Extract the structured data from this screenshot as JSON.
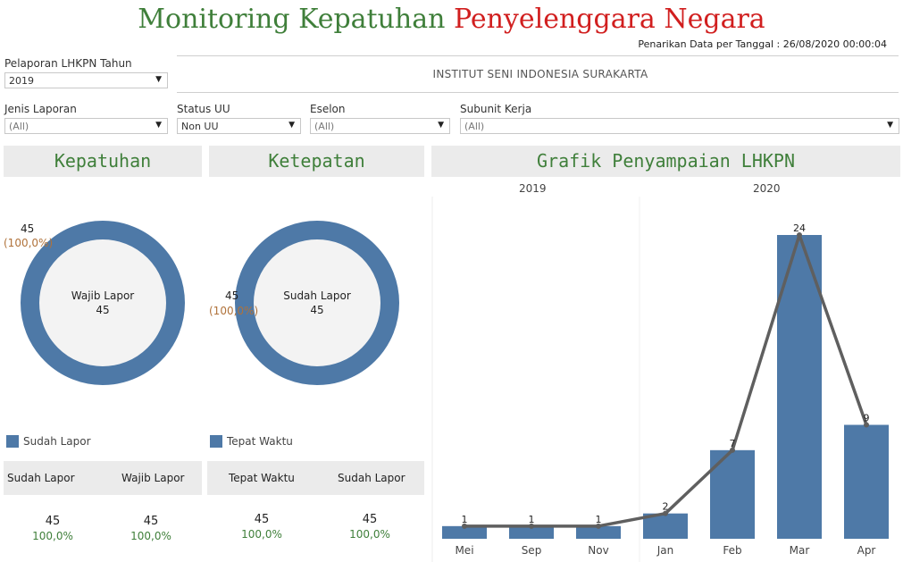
{
  "title": {
    "part1": "Monitoring Kepatuhan",
    "part2": "Penyelenggara Negara"
  },
  "datestamp": "Penarikan Data per Tanggal : 26/08/2020 00:00:04",
  "institute": "INSTITUT SENI INDONESIA SURAKARTA",
  "filters": {
    "tahun": {
      "label": "Pelaporan LHKPN Tahun",
      "value": "2019"
    },
    "jenis": {
      "label": "Jenis Laporan",
      "value": "(All)"
    },
    "status": {
      "label": "Status UU",
      "value": "Non UU"
    },
    "eselon": {
      "label": "Eselon",
      "value": "(All)"
    },
    "subunit": {
      "label": "Subunit Kerja",
      "value": "(All)"
    }
  },
  "kepatuhan": {
    "header": "Kepatuhan",
    "center_label": "Wajib Lapor",
    "center_value": "45",
    "slice_value": "45",
    "slice_pct": "(100,0%)",
    "legend": "Sudah Lapor",
    "table": {
      "col1": "Sudah Lapor",
      "col2": "Wajib Lapor",
      "v1": "45",
      "p1": "100,0%",
      "v2": "45",
      "p2": "100,0%"
    }
  },
  "ketepatan": {
    "header": "Ketepatan",
    "center_label": "Sudah Lapor",
    "center_value": "45",
    "slice_value": "45",
    "slice_pct": "(100,0%)",
    "legend": "Tepat Waktu",
    "table": {
      "col1": "Tepat Waktu",
      "col2": "Sudah Lapor",
      "v1": "45",
      "p1": "100,0%",
      "v2": "45",
      "p2": "100,0%"
    }
  },
  "colors": {
    "bar": "#4e79a7",
    "line": "#5f5f5f",
    "accent_green": "#3f7f3a",
    "accent_red": "#d11f1f"
  },
  "chart_data": {
    "type": "bar",
    "title": "Grafik Penyampaian LHKPN",
    "year_groups": [
      {
        "year": "2019",
        "categories": [
          "Mei",
          "Sep",
          "Nov"
        ]
      },
      {
        "year": "2020",
        "categories": [
          "Jan",
          "Feb",
          "Mar",
          "Apr"
        ]
      }
    ],
    "categories": [
      "Mei",
      "Sep",
      "Nov",
      "Jan",
      "Feb",
      "Mar",
      "Apr"
    ],
    "values": [
      1,
      1,
      1,
      2,
      7,
      24,
      9
    ],
    "overlay_line": true,
    "ylim": [
      0,
      24
    ],
    "grid": false
  }
}
